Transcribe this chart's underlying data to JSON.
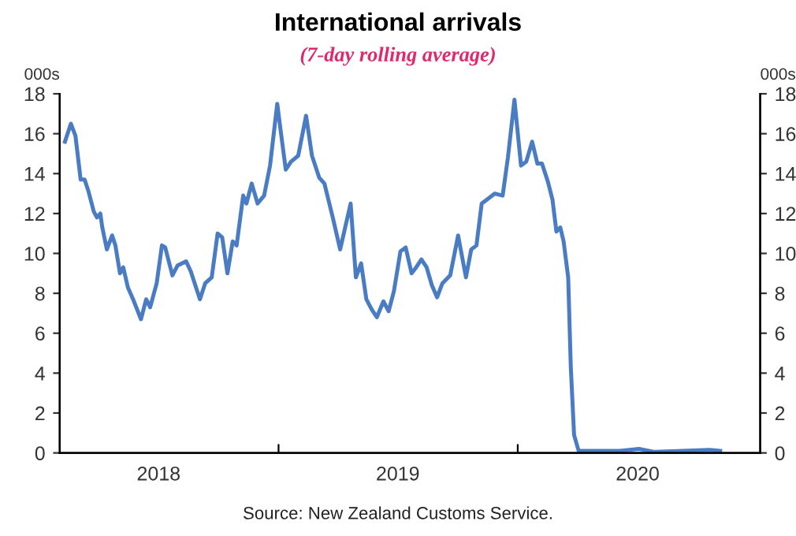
{
  "chart_data": {
    "type": "line",
    "title": "International arrivals",
    "subtitle": "(7-day rolling average)",
    "ylabel": "000s",
    "y2label": "000s",
    "annotations": [
      "Source: New Zealand Customs Service."
    ],
    "x": [
      "2018-02-09",
      "2018-02-18",
      "2018-02-25",
      "2018-03-05",
      "2018-03-11",
      "2018-03-17",
      "2018-03-25",
      "2018-03-30",
      "2018-04-04",
      "2018-04-07",
      "2018-04-14",
      "2018-04-22",
      "2018-04-27",
      "2018-05-04",
      "2018-05-09",
      "2018-05-16",
      "2018-05-24",
      "2018-06-05",
      "2018-06-13",
      "2018-06-19",
      "2018-06-29",
      "2018-07-07",
      "2018-07-12",
      "2018-07-23",
      "2018-07-31",
      "2018-08-13",
      "2018-08-20",
      "2018-09-03",
      "2018-09-11",
      "2018-09-21",
      "2018-09-30",
      "2018-10-07",
      "2018-10-15",
      "2018-10-23",
      "2018-10-29",
      "2018-11-08",
      "2018-11-13",
      "2018-11-21",
      "2018-11-30",
      "2018-12-10",
      "2018-12-19",
      "2018-12-30",
      "2019-01-04",
      "2019-01-12",
      "2019-01-20",
      "2019-01-31",
      "2019-02-12",
      "2019-02-21",
      "2019-03-04",
      "2019-03-12",
      "2019-03-24",
      "2019-04-05",
      "2019-04-21",
      "2019-04-29",
      "2019-05-07",
      "2019-05-15",
      "2019-05-23",
      "2019-05-31",
      "2019-06-10",
      "2019-06-18",
      "2019-06-26",
      "2019-07-06",
      "2019-07-14",
      "2019-07-23",
      "2019-07-30",
      "2019-08-07",
      "2019-08-15",
      "2019-08-23",
      "2019-08-31",
      "2019-09-08",
      "2019-09-20",
      "2019-10-02",
      "2019-10-14",
      "2019-10-22",
      "2019-10-30",
      "2019-11-07",
      "2019-11-15",
      "2019-11-27",
      "2019-12-09",
      "2019-12-17",
      "2019-12-27",
      "2020-01-06",
      "2020-01-14",
      "2020-01-23",
      "2020-01-31",
      "2020-02-07",
      "2020-02-16",
      "2020-02-23",
      "2020-02-29",
      "2020-03-06",
      "2020-03-11",
      "2020-03-18",
      "2020-03-22",
      "2020-03-27",
      "2020-04-03",
      "2020-04-27",
      "2020-06-05",
      "2020-07-04",
      "2020-07-28",
      "2020-09-09",
      "2020-10-20",
      "2020-11-05"
    ],
    "series": [
      {
        "color": "#4a7cc4",
        "values": [
          15.6,
          16.5,
          15.9,
          13.7,
          13.7,
          13.1,
          12.1,
          11.8,
          12.0,
          11.3,
          10.2,
          10.9,
          10.4,
          9.0,
          9.3,
          8.3,
          7.7,
          6.7,
          7.7,
          7.3,
          8.5,
          10.4,
          10.3,
          8.9,
          9.4,
          9.6,
          9.1,
          7.7,
          8.5,
          8.8,
          11.0,
          10.8,
          9.0,
          10.6,
          10.4,
          12.9,
          12.5,
          13.5,
          12.5,
          12.9,
          14.4,
          17.5,
          16.2,
          14.2,
          14.6,
          14.9,
          16.9,
          14.9,
          13.8,
          13.5,
          11.9,
          10.2,
          12.5,
          8.8,
          9.5,
          7.7,
          7.2,
          6.8,
          7.6,
          7.1,
          8.1,
          10.1,
          10.3,
          9.0,
          9.3,
          9.7,
          9.3,
          8.4,
          7.8,
          8.5,
          8.9,
          10.9,
          8.8,
          10.2,
          10.4,
          12.5,
          12.7,
          13.0,
          12.9,
          14.8,
          17.7,
          14.4,
          14.6,
          15.6,
          14.5,
          14.5,
          13.6,
          12.7,
          11.1,
          11.3,
          10.6,
          8.8,
          4.3,
          0.9,
          0.1,
          0.1,
          0.1,
          0.2,
          0.05,
          0.1,
          0.15,
          0.1
        ]
      }
    ],
    "xlim": [
      "2018-02-01",
      "2021-01-05"
    ],
    "xticks": [
      {
        "value": "2018-07-02",
        "label": "2018"
      },
      {
        "value": "2019-01-01",
        "label": null
      },
      {
        "value": "2019-07-02",
        "label": "2019"
      },
      {
        "value": "2020-01-01",
        "label": null
      },
      {
        "value": "2020-07-02",
        "label": "2020"
      }
    ],
    "ylim": [
      0,
      18
    ],
    "yticks": [
      0,
      2,
      4,
      6,
      8,
      10,
      12,
      14,
      16,
      18
    ],
    "y2lim": [
      0,
      18
    ],
    "y2ticks": [
      0,
      2,
      4,
      6,
      8,
      10,
      12,
      14,
      16,
      18
    ],
    "grid": false,
    "legend": false,
    "marker": "none",
    "line_style": "solid"
  }
}
